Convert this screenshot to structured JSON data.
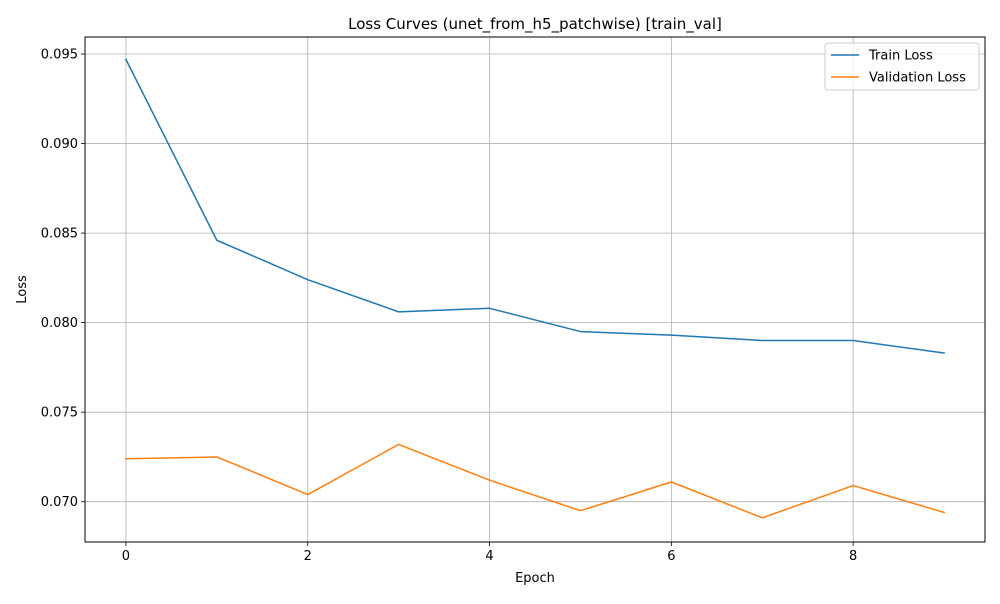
{
  "chart_data": {
    "type": "line",
    "title": "Loss Curves (unet_from_h5_patchwise) [train_val]",
    "xlabel": "Epoch",
    "ylabel": "Loss",
    "xlim": [
      -0.45,
      9.45
    ],
    "ylim": [
      0.06775,
      0.09595
    ],
    "xticks": [
      0,
      2,
      4,
      6,
      8
    ],
    "xtick_labels": [
      "0",
      "2",
      "4",
      "6",
      "8"
    ],
    "yticks": [
      0.07,
      0.075,
      0.08,
      0.085,
      0.09,
      0.095
    ],
    "ytick_labels": [
      "0.070",
      "0.075",
      "0.080",
      "0.085",
      "0.090",
      "0.095"
    ],
    "grid": true,
    "legend_position": "top-right",
    "x": [
      0,
      1,
      2,
      3,
      4,
      5,
      6,
      7,
      8,
      9
    ],
    "series": [
      {
        "name": "Train Loss",
        "color": "#1f77b4",
        "values": [
          0.0947,
          0.0846,
          0.0824,
          0.0806,
          0.0808,
          0.0795,
          0.0793,
          0.079,
          0.079,
          0.0783
        ]
      },
      {
        "name": "Validation Loss",
        "color": "#ff7f0e",
        "values": [
          0.0724,
          0.0725,
          0.0704,
          0.0732,
          0.0712,
          0.0695,
          0.0711,
          0.0691,
          0.0709,
          0.0694
        ]
      }
    ]
  }
}
